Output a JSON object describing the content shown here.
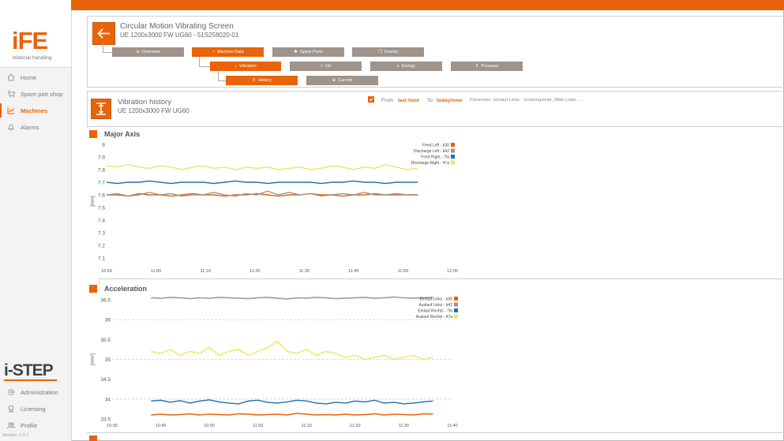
{
  "app": {
    "logo_text": "iFE",
    "logo_subtitle": "Material handling",
    "brand": "i-STEP",
    "version": "Version: 1.0.1",
    "accent_color": "#e8630a"
  },
  "sidebar": {
    "top_items": [
      {
        "label": "Home",
        "icon": "home-icon"
      },
      {
        "label": "Spare part shop",
        "icon": "cart-icon"
      },
      {
        "label": "Machines",
        "icon": "chart-icon",
        "active": true
      },
      {
        "label": "Alarms",
        "icon": "bell-icon"
      }
    ],
    "bottom_items": [
      {
        "label": "Administration",
        "icon": "gear-icon"
      },
      {
        "label": "Licensing",
        "icon": "badge-icon"
      },
      {
        "label": "Profile",
        "icon": "users-icon"
      }
    ]
  },
  "header": {
    "title": "Circular Motion Vibrating Screen",
    "subtitle": "UE 1200x3000 FW UG60 - 51S258020-01"
  },
  "tabs": {
    "overview": "Overview",
    "machine_data": "Machine Data",
    "spare_parts": "Spare Parts",
    "events": "Events",
    "vibration": "Vibration",
    "oil": "Oil",
    "energy": "Energy",
    "pressure": "Pressure",
    "history": "History",
    "current": "Current"
  },
  "section": {
    "title": "Vibration history",
    "subtitle": "UE 1200x3000 FW UG60",
    "from_label": "From",
    "from_value": "last hour",
    "to_label": "To",
    "to_value": "today/now",
    "parameter": "Parameter: Einlauf Links - Schwingweite, Mitte Links ..."
  },
  "chart_data": [
    {
      "type": "line",
      "title": "Major Axis",
      "ylabel": "[mm]",
      "ylim": [
        7.1,
        8
      ],
      "yticks": [
        "8",
        "7.9",
        "7.8",
        "7.7",
        "7.6",
        "7.5",
        "7.4",
        "7.3",
        "7.2",
        "7.1"
      ],
      "xticks": [
        "10:50",
        "11:00",
        "11:10",
        "11:20",
        "11:30",
        "11:40",
        "11:50",
        "12:00"
      ],
      "x_start_minutes": 0,
      "x_end_minutes": 70,
      "data_end_minutes": 63,
      "series": [
        {
          "name": "Feed Left - b30",
          "color": "#e8630a",
          "values": [
            7.6,
            7.6,
            7.59,
            7.61,
            7.6,
            7.6,
            7.59,
            7.6,
            7.61,
            7.6,
            7.6,
            7.59,
            7.6,
            7.6,
            7.61,
            7.6,
            7.59,
            7.6,
            7.6,
            7.61,
            7.6,
            7.6,
            7.59,
            7.6,
            7.6,
            7.61,
            7.6,
            7.6,
            7.6,
            7.6
          ]
        },
        {
          "name": "Discharge Left - b42",
          "color": "#9e948c",
          "values": [
            7.6,
            7.61,
            7.59,
            7.6,
            7.62,
            7.6,
            7.61,
            7.59,
            7.6,
            7.6,
            7.62,
            7.6,
            7.59,
            7.61,
            7.6,
            7.63,
            7.6,
            7.62,
            7.6,
            7.61,
            7.59,
            7.6,
            7.61,
            7.6,
            7.62,
            7.6,
            7.6,
            7.61,
            7.6,
            7.6
          ]
        },
        {
          "name": "Feed Right - 7fa",
          "color": "#1f6fb2",
          "values": [
            7.7,
            7.69,
            7.7,
            7.7,
            7.71,
            7.7,
            7.69,
            7.7,
            7.7,
            7.7,
            7.69,
            7.7,
            7.71,
            7.7,
            7.7,
            7.69,
            7.7,
            7.7,
            7.7,
            7.7,
            7.69,
            7.7,
            7.7,
            7.71,
            7.7,
            7.7,
            7.69,
            7.7,
            7.7,
            7.7
          ]
        },
        {
          "name": "Discharge Right - 47a",
          "color": "#f1e45a",
          "values": [
            7.83,
            7.82,
            7.84,
            7.82,
            7.81,
            7.83,
            7.82,
            7.8,
            7.82,
            7.83,
            7.81,
            7.82,
            7.8,
            7.82,
            7.81,
            7.82,
            7.8,
            7.81,
            7.82,
            7.8,
            7.81,
            7.83,
            7.82,
            7.8,
            7.82,
            7.81,
            7.84,
            7.82,
            7.8,
            7.81
          ]
        }
      ]
    },
    {
      "type": "line",
      "title": "Acceleration",
      "ylabel": "[m/s²]",
      "ylim": [
        33.5,
        36.5
      ],
      "yticks": [
        "36.5",
        "36",
        "35.5",
        "35",
        "34.5",
        "34",
        "33.5"
      ],
      "xticks": [
        "10:30",
        "10:40",
        "10:50",
        "11:00",
        "11:10",
        "11:20",
        "11:30",
        "11:40"
      ],
      "x_start_minutes": 0,
      "x_end_minutes": 70,
      "data_start_minutes": 8,
      "data_end_minutes": 66,
      "series": [
        {
          "name": "Einlauf Links - b30",
          "color": "#e8630a",
          "values": [
            33.6,
            33.62,
            33.6,
            33.61,
            33.63,
            33.6,
            33.62,
            33.61,
            33.6,
            33.63,
            33.62,
            33.6,
            33.61,
            33.62,
            33.6,
            33.64,
            33.62,
            33.6,
            33.61,
            33.6,
            33.62,
            33.6,
            33.61,
            33.63,
            33.6,
            33.62,
            33.61,
            33.6,
            33.63,
            33.62
          ]
        },
        {
          "name": "Auslauf Links - b42",
          "color": "#9e948c",
          "values": [
            36.55,
            36.54,
            36.56,
            36.55,
            36.53,
            36.55,
            36.54,
            36.56,
            36.55,
            36.54,
            36.53,
            36.55,
            36.56,
            36.54,
            36.52,
            36.55,
            36.54,
            36.56,
            36.55,
            36.53,
            36.54,
            36.55,
            36.56,
            36.54,
            36.55,
            36.57,
            36.55,
            36.54,
            36.55,
            36.56
          ]
        },
        {
          "name": "Einlauf Rechts - 7fa",
          "color": "#1f6fb2",
          "values": [
            33.95,
            33.97,
            33.92,
            33.96,
            33.9,
            33.95,
            33.98,
            33.93,
            33.9,
            33.88,
            33.95,
            33.97,
            33.92,
            33.9,
            33.93,
            33.97,
            33.95,
            33.9,
            33.88,
            33.92,
            33.9,
            33.95,
            33.93,
            33.97,
            33.9,
            33.92,
            33.88,
            33.9,
            33.93,
            33.95
          ]
        },
        {
          "name": "Auslauf Rechts - 47a",
          "color": "#f1e45a",
          "values": [
            35.2,
            35.15,
            35.25,
            35.1,
            35.2,
            35.15,
            35.3,
            35.1,
            35.2,
            35.25,
            35.1,
            35.2,
            35.3,
            35.45,
            35.2,
            35.15,
            35.25,
            35.1,
            35.2,
            35.15,
            35.05,
            35.1,
            35.0,
            35.05,
            35.1,
            35.0,
            35.05,
            35.1,
            35.0,
            35.05
          ]
        }
      ]
    }
  ]
}
